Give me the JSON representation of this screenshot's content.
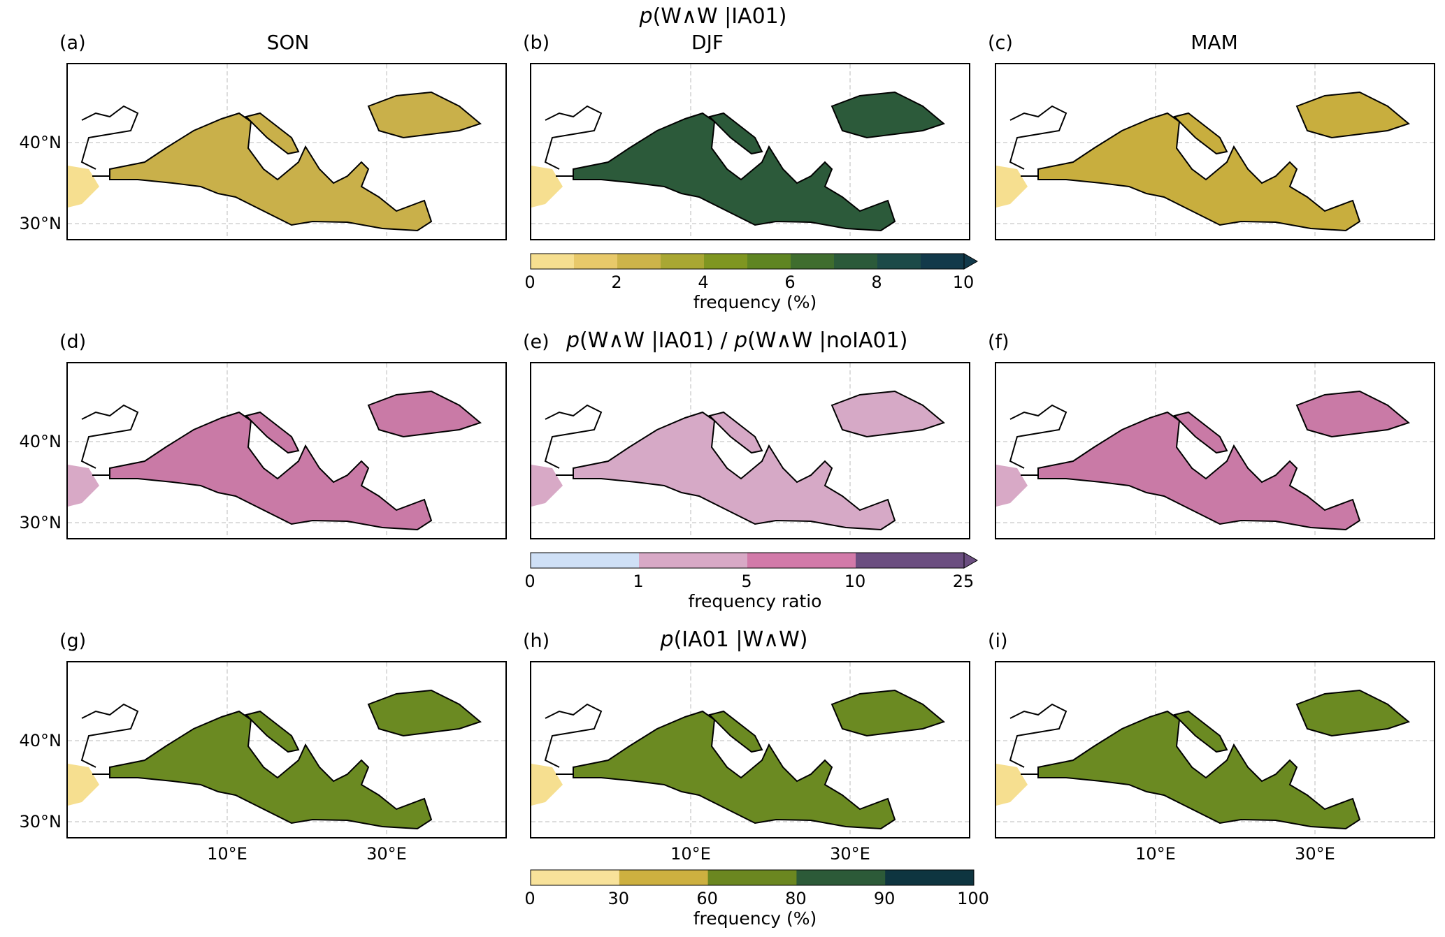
{
  "rows": [
    {
      "title_prefix": "p",
      "title_rest": "(W∧W |IA01)",
      "panels": [
        {
          "letter": "(a)",
          "season": "SON"
        },
        {
          "letter": "(b)",
          "season": "DJF"
        },
        {
          "letter": "(c)",
          "season": "MAM"
        }
      ]
    },
    {
      "title_prefix": "p",
      "title_mid": "(W∧W |IA01) / ",
      "title_prefix2": "p",
      "title_rest": "(W∧W |noIA01)",
      "panels": [
        {
          "letter": "(d)",
          "season": ""
        },
        {
          "letter": "(e)",
          "season": ""
        },
        {
          "letter": "(f)",
          "season": ""
        }
      ]
    },
    {
      "title_prefix": "p",
      "title_rest": "(IA01 |W∧W)",
      "panels": [
        {
          "letter": "(g)",
          "season": ""
        },
        {
          "letter": "(h)",
          "season": ""
        },
        {
          "letter": "(i)",
          "season": ""
        }
      ]
    }
  ],
  "lat_labels": [
    "40°N",
    "30°N"
  ],
  "lon_labels": [
    "10°E",
    "30°E"
  ],
  "colorbars": [
    {
      "label": "frequency (%)",
      "ticks": [
        "0",
        "2",
        "4",
        "6",
        "8",
        "10"
      ],
      "colors": [
        "#f6df90",
        "#e8c96a",
        "#cdb44a",
        "#a9a733",
        "#7f9621",
        "#5f8522",
        "#3f6d2e",
        "#2b5a3a",
        "#1c4a48",
        "#12394a"
      ],
      "extend": "max"
    },
    {
      "label": "frequency ratio",
      "ticks": [
        "0",
        "1",
        "5",
        "10",
        "25"
      ],
      "colors": [
        "#cfe0f6",
        "#d8a9c6",
        "#d27aa9",
        "#6b4e80"
      ],
      "extend": "max"
    },
    {
      "label": "frequency (%)",
      "ticks": [
        "0",
        "30",
        "60",
        "80",
        "90",
        "100"
      ],
      "colors": [
        "#f8e29a",
        "#cdb040",
        "#6b8720",
        "#2c5a38",
        "#0e3540"
      ],
      "extend": "none"
    }
  ],
  "colors": {
    "row1_a": "#c9b04a",
    "row1_b": "#2c5a3a",
    "row1_c": "#c8ae3e",
    "row2_a": "#c97aa6",
    "row2_b": "#d6a9c6",
    "row2_c": "#c97aa6",
    "row3": "#6b8a22"
  }
}
